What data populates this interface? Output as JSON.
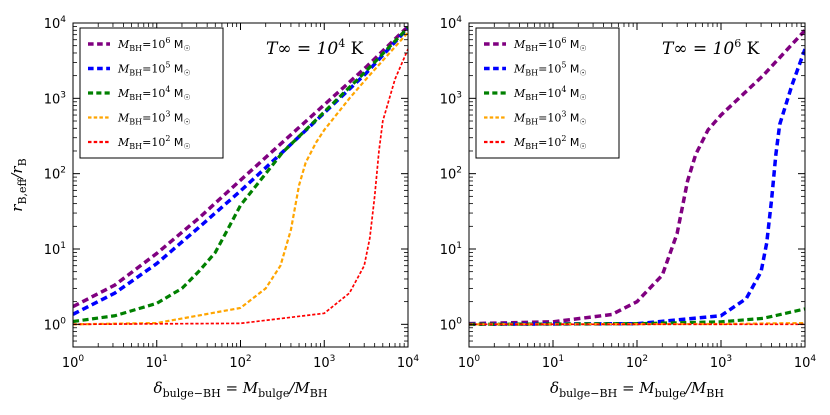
{
  "chart_data": [
    {
      "type": "line",
      "panel": "left",
      "xscale": "log",
      "yscale": "log",
      "xlim": [
        1,
        10000
      ],
      "ylim": [
        0.5,
        10000
      ],
      "x_ticks": [
        {
          "base": "10",
          "exp": "0"
        },
        {
          "base": "10",
          "exp": "1"
        },
        {
          "base": "10",
          "exp": "2"
        },
        {
          "base": "10",
          "exp": "3"
        },
        {
          "base": "10",
          "exp": "4"
        }
      ],
      "y_ticks": [
        {
          "base": "10",
          "exp": "0"
        },
        {
          "base": "10",
          "exp": "1"
        },
        {
          "base": "10",
          "exp": "2"
        },
        {
          "base": "10",
          "exp": "3"
        },
        {
          "base": "10",
          "exp": "4"
        }
      ],
      "xlabel": "δbulge−BH = Mbulge / MBH",
      "ylabel": "rB,eff / rB",
      "annotation": {
        "text": "T∞ = 10",
        "exp": "4",
        "unit": " K"
      },
      "legend_position": "top-left",
      "series": [
        {
          "name": "MBH = 10^6 M☉",
          "mass_exp": "6",
          "color": "#800080",
          "width": 3.5,
          "x": [
            1,
            3.16,
            10,
            31.6,
            100,
            316,
            1000,
            3162,
            10000
          ],
          "y": [
            1.72,
            3.32,
            8.73,
            25.5,
            82.0,
            260,
            820,
            2600,
            9000
          ]
        },
        {
          "name": "MBH = 10^5 M☉",
          "mass_exp": "5",
          "color": "#0000ff",
          "width": 3.5,
          "x": [
            1,
            3.16,
            10,
            31.6,
            100,
            316,
            1000,
            3162,
            10000
          ],
          "y": [
            1.36,
            2.6,
            6.4,
            19.2,
            59.0,
            192,
            640,
            2150,
            8600
          ]
        },
        {
          "name": "MBH = 10^4 M☉",
          "mass_exp": "4",
          "color": "#008000",
          "width": 3.2,
          "x": [
            1,
            3.16,
            10,
            20,
            31.6,
            50,
            70,
            100,
            316,
            1000,
            3162,
            10000
          ],
          "y": [
            1.09,
            1.3,
            1.9,
            3.0,
            5.0,
            9.0,
            18.0,
            38.0,
            190,
            660,
            2300,
            8700
          ]
        },
        {
          "name": "MBH = 10^3 M☉",
          "mass_exp": "3",
          "color": "#ffa500",
          "width": 2.2,
          "x": [
            1,
            10,
            100,
            200,
            300,
            400,
            500,
            600,
            800,
            1000,
            2000,
            3162,
            10000
          ],
          "y": [
            1.0,
            1.04,
            1.65,
            3.0,
            6.0,
            18.0,
            70.0,
            140,
            260,
            380,
            1000,
            1800,
            7500
          ]
        },
        {
          "name": "MBH = 10^2 M☉",
          "mass_exp": "2",
          "color": "#ff0000",
          "width": 1.7,
          "x": [
            1,
            100,
            1000,
            2000,
            3000,
            3500,
            4000,
            4500,
            5000,
            7000,
            10000
          ],
          "y": [
            1.0,
            1.03,
            1.4,
            2.6,
            6.0,
            14.0,
            50.0,
            200,
            500,
            1800,
            4500
          ]
        }
      ]
    },
    {
      "type": "line",
      "panel": "right",
      "xscale": "log",
      "yscale": "log",
      "xlim": [
        1,
        10000
      ],
      "ylim": [
        0.5,
        10000
      ],
      "x_ticks": [
        {
          "base": "10",
          "exp": "0"
        },
        {
          "base": "10",
          "exp": "1"
        },
        {
          "base": "10",
          "exp": "2"
        },
        {
          "base": "10",
          "exp": "3"
        },
        {
          "base": "10",
          "exp": "4"
        }
      ],
      "y_ticks": [
        {
          "base": "10",
          "exp": "0"
        },
        {
          "base": "10",
          "exp": "1"
        },
        {
          "base": "10",
          "exp": "2"
        },
        {
          "base": "10",
          "exp": "3"
        },
        {
          "base": "10",
          "exp": "4"
        }
      ],
      "xlabel": "δbulge−BH = Mbulge / MBH",
      "annotation": {
        "text": "T∞ = 10",
        "exp": "6",
        "unit": " K"
      },
      "legend_position": "top-left",
      "series": [
        {
          "name": "MBH = 10^6 M☉",
          "mass_exp": "6",
          "color": "#800080",
          "width": 3.5,
          "x": [
            1,
            10,
            50,
            100,
            200,
            300,
            400,
            500,
            700,
            1000,
            3162,
            10000
          ],
          "y": [
            1.02,
            1.08,
            1.35,
            2.0,
            4.5,
            16.0,
            80.0,
            180,
            380,
            600,
            2000,
            8000
          ]
        },
        {
          "name": "MBH = 10^5 M☉",
          "mass_exp": "5",
          "color": "#0000ff",
          "width": 3.5,
          "x": [
            1,
            100,
            1000,
            2000,
            3000,
            3500,
            4000,
            4500,
            5000,
            7000,
            10000
          ],
          "y": [
            1.0,
            1.02,
            1.3,
            2.2,
            5.0,
            12.0,
            45.0,
            180,
            450,
            1500,
            4500
          ]
        },
        {
          "name": "MBH = 10^4 M☉",
          "mass_exp": "4",
          "color": "#008000",
          "width": 3.2,
          "x": [
            1,
            100,
            1000,
            3162,
            10000
          ],
          "y": [
            1.0,
            1.02,
            1.08,
            1.2,
            1.6
          ]
        },
        {
          "name": "MBH = 10^3 M☉",
          "mass_exp": "3",
          "color": "#ffa500",
          "width": 2.2,
          "x": [
            1,
            1000,
            10000
          ],
          "y": [
            1.0,
            1.01,
            1.04
          ]
        },
        {
          "name": "MBH = 10^2 M☉",
          "mass_exp": "2",
          "color": "#ff0000",
          "width": 1.7,
          "x": [
            1,
            10000
          ],
          "y": [
            1.0,
            1.0
          ]
        }
      ]
    }
  ]
}
